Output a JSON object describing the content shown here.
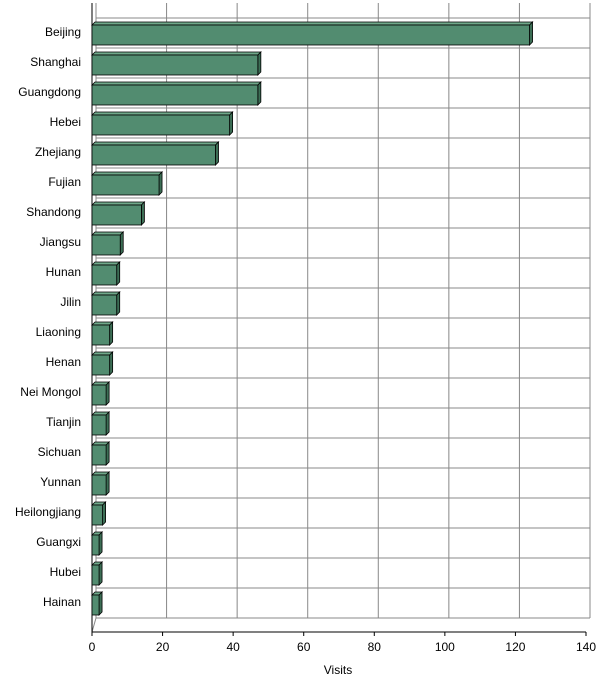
{
  "chart_data": {
    "type": "bar",
    "orientation": "horizontal",
    "x_label": "Visits",
    "categories": [
      "Beijing",
      "Shanghai",
      "Guangdong",
      "Hebei",
      "Zhejiang",
      "Fujian",
      "Shandong",
      "Jiangsu",
      "Hunan",
      "Jilin",
      "Liaoning",
      "Henan",
      "Nei Mongol",
      "Tianjin",
      "Sichuan",
      "Yunnan",
      "Heilongjiang",
      "Guangxi",
      "Hubei",
      "Hainan"
    ],
    "values": [
      124,
      47,
      47,
      39,
      35,
      19,
      14,
      8,
      7,
      7,
      5,
      5,
      4,
      4,
      4,
      4,
      3,
      2,
      2,
      2
    ],
    "color": "#528c70",
    "xlim": [
      0,
      140
    ],
    "xticks": [
      0,
      20,
      40,
      60,
      80,
      100,
      120,
      140
    ],
    "grid": true
  }
}
